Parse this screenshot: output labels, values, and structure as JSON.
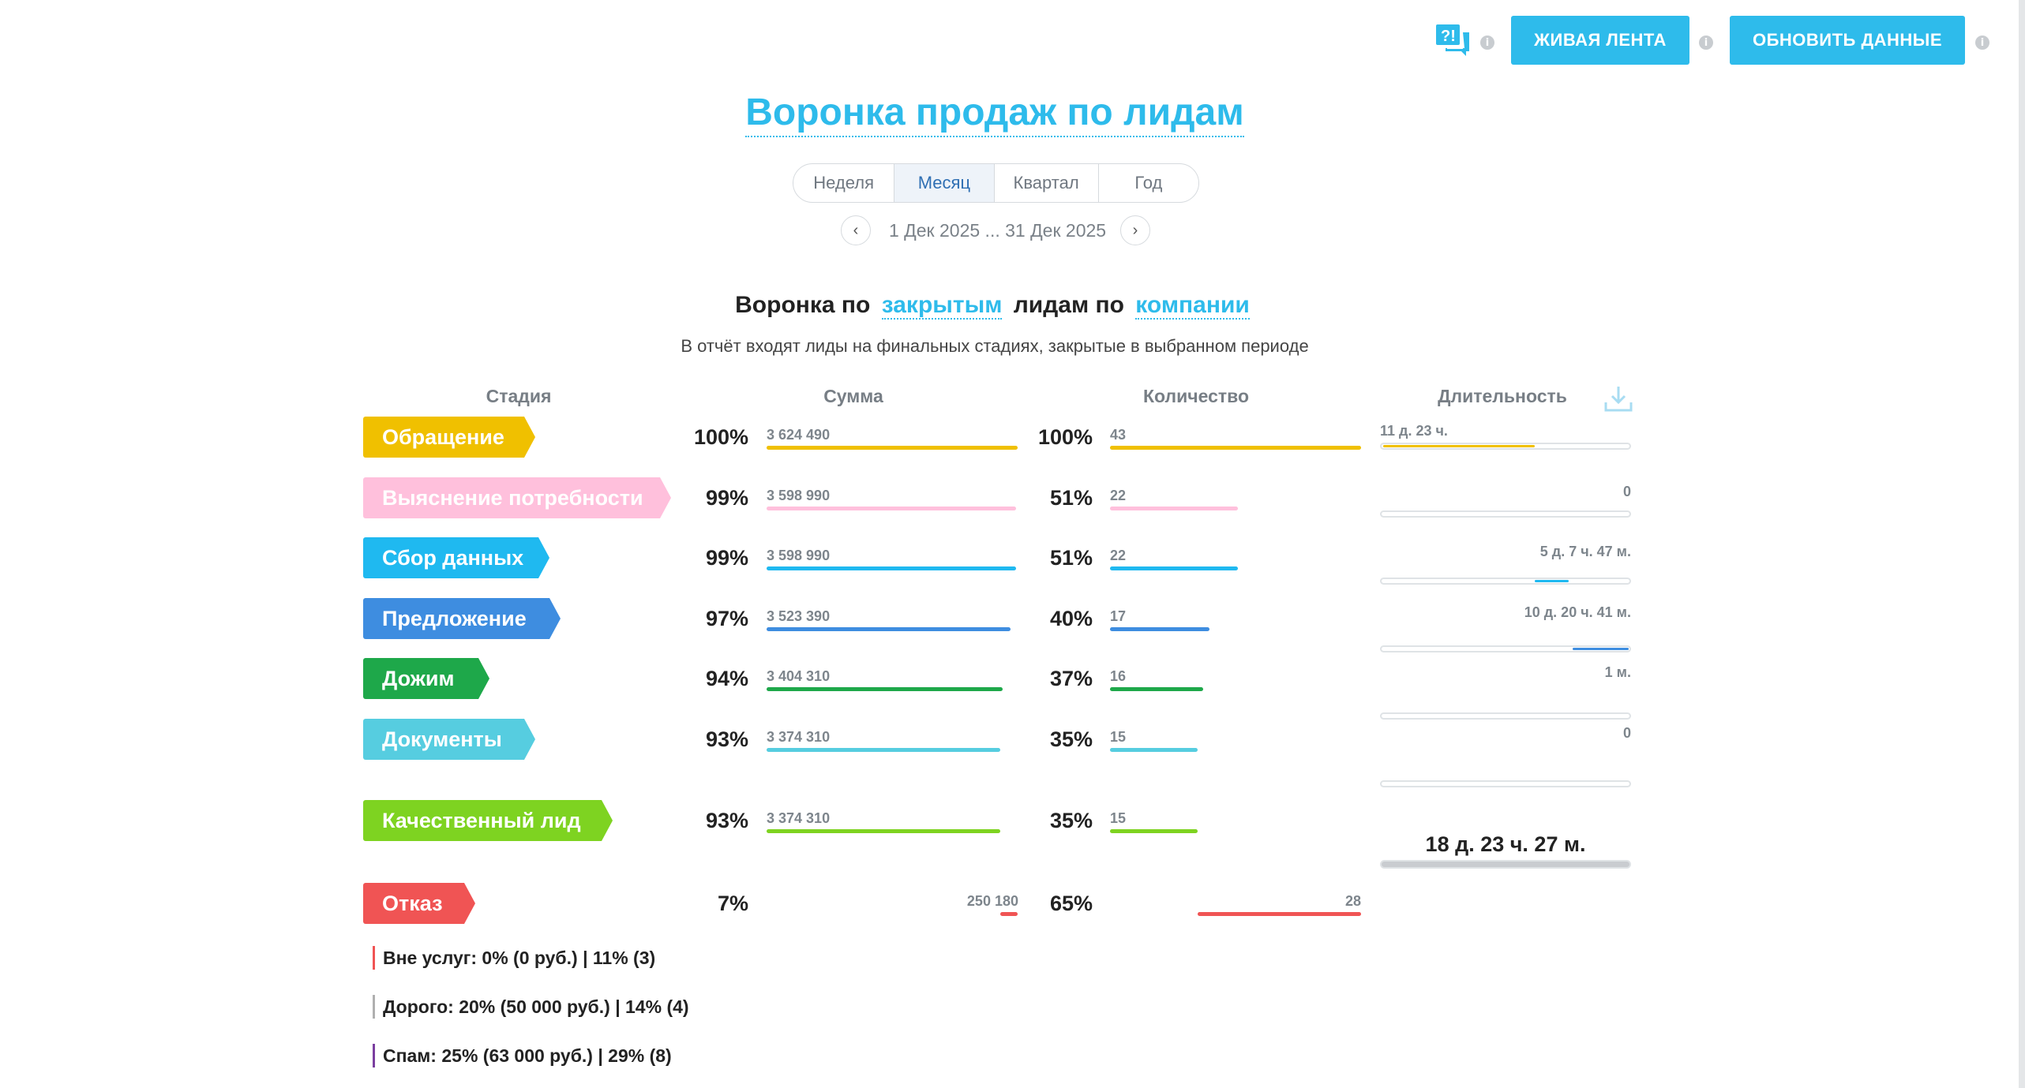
{
  "header": {
    "live_feed_label": "ЖИВАЯ ЛЕНТА",
    "refresh_label": "ОБНОВИТЬ ДАННЫЕ",
    "help_icon": "question-chat-icon",
    "info_icon": "info-icon",
    "accent_color": "#2ebbeb"
  },
  "page": {
    "title": "Воронка продаж по лидам",
    "period_tabs": [
      "Неделя",
      "Месяц",
      "Квартал",
      "Год"
    ],
    "active_tab": "Месяц",
    "date_range": "1 Дек 2025 ... 31 Дек 2025",
    "prev_icon": "chevron-left-icon",
    "next_icon": "chevron-right-icon"
  },
  "report": {
    "heading_prefix": "Воронка по",
    "heading_link1": "закрытым",
    "heading_middle": "лидам по",
    "heading_link2": "компании",
    "subtitle": "В отчёт входят лиды на финальных стадиях, закрытые в выбранном периоде",
    "columns": {
      "stage": "Стадия",
      "sum": "Сумма",
      "count": "Количество",
      "duration": "Длительность"
    },
    "download_icon": "download-icon",
    "stages": [
      {
        "name": "Обращение",
        "color": "#f0c000",
        "sum_pct": "100%",
        "sum": "3 624 490",
        "sum_fill": 1.0,
        "count_pct": "100%",
        "count": "43",
        "count_fill": 1.0,
        "duration": "11 д. 23 ч.",
        "dur_fill": 0.62
      },
      {
        "name": "Выяснение потребности",
        "color": "#ffc0dc",
        "sum_pct": "99%",
        "sum": "3 598 990",
        "sum_fill": 0.993,
        "count_pct": "51%",
        "count": "22",
        "count_fill": 0.51,
        "duration": "0",
        "dur_fill": 0
      },
      {
        "name": "Сбор данных",
        "color": "#1fb9f0",
        "sum_pct": "99%",
        "sum": "3 598 990",
        "sum_fill": 0.993,
        "count_pct": "51%",
        "count": "22",
        "count_fill": 0.51,
        "duration": "5 д. 7 ч. 47 м.",
        "dur_fill": 0.14
      },
      {
        "name": "Предложение",
        "color": "#3e8de0",
        "sum_pct": "97%",
        "sum": "3 523 390",
        "sum_fill": 0.972,
        "count_pct": "40%",
        "count": "17",
        "count_fill": 0.395,
        "duration": "10 д. 20 ч. 41 м.",
        "dur_fill": 0.23
      },
      {
        "name": "Дожим",
        "color": "#1ea84a",
        "sum_pct": "94%",
        "sum": "3 404 310",
        "sum_fill": 0.939,
        "count_pct": "37%",
        "count": "16",
        "count_fill": 0.372,
        "duration": "1 м.",
        "dur_fill": 0
      },
      {
        "name": "Документы",
        "color": "#56cde0",
        "sum_pct": "93%",
        "sum": "3 374 310",
        "sum_fill": 0.931,
        "count_pct": "35%",
        "count": "15",
        "count_fill": 0.349,
        "duration": "0",
        "dur_fill": 0
      }
    ],
    "quality": {
      "name": "Качественный лид",
      "color": "#7ed321",
      "sum_pct": "93%",
      "sum": "3 374 310",
      "sum_fill": 0.931,
      "count_pct": "35%",
      "count": "15",
      "count_fill": 0.349,
      "total_duration": "18 д. 23 ч. 27 м."
    },
    "refusal": {
      "name": "Отказ",
      "color": "#f05454",
      "sum_pct": "7%",
      "sum": "250 180",
      "sum_fill": 0.069,
      "count_pct": "65%",
      "count": "28",
      "count_fill": 0.65
    },
    "reasons": [
      {
        "text": "Вне услуг: 0% (0 руб.) | 11% (3)",
        "color": "#f05454"
      },
      {
        "text": "Дорого: 20% (50 000 руб.) | 14% (4)",
        "color": "#b0b0b0"
      },
      {
        "text": "Спам: 25% (63 000 руб.) | 29% (8)",
        "color": "#7b3fa0"
      }
    ]
  }
}
